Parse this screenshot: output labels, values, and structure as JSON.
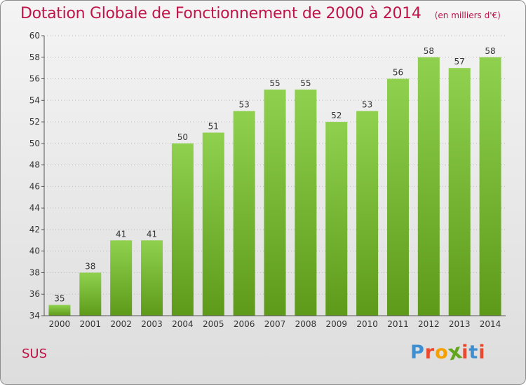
{
  "header": {
    "title": "Dotation Globale de Fonctionnement de 2000 à 2014",
    "unit": "(en milliers d'€)"
  },
  "footer": {
    "commune": "SUS",
    "brand": "Proxiti",
    "brand_colors": [
      "#3d8fd1",
      "#e8482e",
      "#f5a000",
      "#62a61e",
      "#e8482e",
      "#3d8fd1",
      "#e8482e"
    ]
  },
  "chart_data": {
    "type": "bar",
    "categories": [
      "2000",
      "2001",
      "2002",
      "2003",
      "2004",
      "2005",
      "2006",
      "2007",
      "2008",
      "2009",
      "2010",
      "2011",
      "2012",
      "2013",
      "2014"
    ],
    "values": [
      35,
      38,
      41,
      41,
      50,
      51,
      53,
      55,
      55,
      52,
      53,
      56,
      58,
      57,
      58
    ],
    "data_labels": [
      "35",
      "38",
      "41",
      "41",
      "50",
      "51",
      "53",
      "55",
      "55",
      "52",
      "53",
      "56",
      "58",
      "57",
      "58"
    ],
    "ylim": [
      34,
      60
    ],
    "yticks": [
      34,
      36,
      38,
      40,
      42,
      44,
      46,
      48,
      50,
      52,
      54,
      56,
      58,
      60
    ],
    "title": "Dotation Globale de Fonctionnement de 2000 à 2014",
    "xlabel": "",
    "ylabel": "",
    "grid": true,
    "bar_color": "#7fc241"
  }
}
